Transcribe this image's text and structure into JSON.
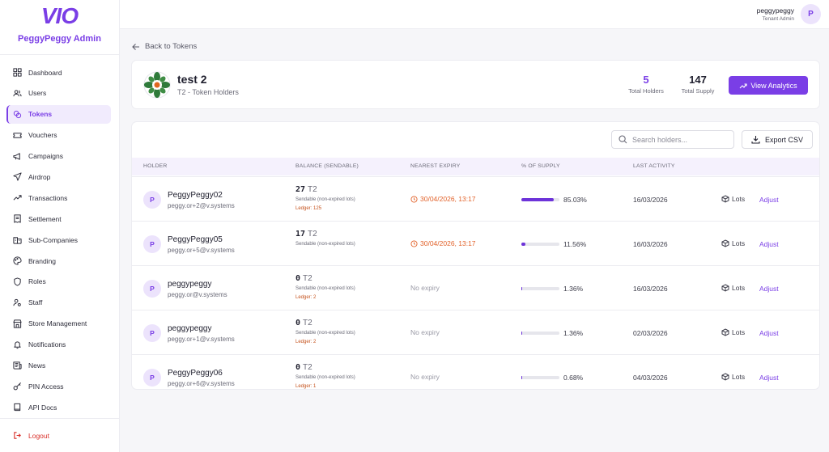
{
  "sidebar": {
    "logo_text": "VIO",
    "brand_title": "PeggyPeggy Admin",
    "items": [
      {
        "label": "Dashboard",
        "icon": "dashboard-icon",
        "active": false
      },
      {
        "label": "Users",
        "icon": "users-icon",
        "active": false
      },
      {
        "label": "Tokens",
        "icon": "coins-icon",
        "active": true
      },
      {
        "label": "Vouchers",
        "icon": "ticket-icon",
        "active": false
      },
      {
        "label": "Campaigns",
        "icon": "megaphone-icon",
        "active": false
      },
      {
        "label": "Airdrop",
        "icon": "send-icon",
        "active": false
      },
      {
        "label": "Transactions",
        "icon": "trending-up-icon",
        "active": false
      },
      {
        "label": "Settlement",
        "icon": "receipt-icon",
        "active": false
      },
      {
        "label": "Sub-Companies",
        "icon": "building-icon",
        "active": false
      },
      {
        "label": "Branding",
        "icon": "palette-icon",
        "active": false
      },
      {
        "label": "Roles",
        "icon": "shield-icon",
        "active": false
      },
      {
        "label": "Staff",
        "icon": "user-cog-icon",
        "active": false
      },
      {
        "label": "Store Management",
        "icon": "store-icon",
        "active": false
      },
      {
        "label": "Notifications",
        "icon": "bell-icon",
        "active": false
      },
      {
        "label": "News",
        "icon": "newspaper-icon",
        "active": false
      },
      {
        "label": "PIN Access",
        "icon": "key-icon",
        "active": false
      },
      {
        "label": "API Docs",
        "icon": "book-icon",
        "active": false
      }
    ],
    "logout_label": "Logout"
  },
  "header": {
    "user_name": "peggypeggy",
    "user_role": "Tenant Admin",
    "avatar_initial": "P"
  },
  "back_label": "Back to Tokens",
  "token": {
    "name": "test 2",
    "subtitle": "T2 - Token Holders",
    "total_holders": "5",
    "total_holders_label": "Total Holders",
    "total_supply": "147",
    "total_supply_label": "Total Supply",
    "analytics_label": "View Analytics"
  },
  "table": {
    "search_placeholder": "Search holders...",
    "export_label": "Export CSV",
    "columns": [
      "HOLDER",
      "BALANCE (SENDABLE)",
      "NEAREST EXPIRY",
      "% OF SUPPLY",
      "LAST ACTIVITY"
    ],
    "rows": [
      {
        "initial": "P",
        "name": "PeggyPeggy02",
        "email": "peggy.or+2@v.systems",
        "balance": "27",
        "unit": "T2",
        "sendable": "Sendable (non-expired lots)",
        "ledger": "Ledger: 125",
        "expiry": "30/04/2026, 13:17",
        "expiry_warn": true,
        "pct": 85.03,
        "pct_label": "85.03%",
        "last_activity": "16/03/2026",
        "lots_label": "Lots",
        "adjust_label": "Adjust"
      },
      {
        "initial": "P",
        "name": "PeggyPeggy05",
        "email": "peggy.or+5@v.systems",
        "balance": "17",
        "unit": "T2",
        "sendable": "Sendable (non-expired lots)",
        "ledger": "",
        "expiry": "30/04/2026, 13:17",
        "expiry_warn": true,
        "pct": 11.56,
        "pct_label": "11.56%",
        "last_activity": "16/03/2026",
        "lots_label": "Lots",
        "adjust_label": "Adjust"
      },
      {
        "initial": "P",
        "name": "peggypeggy",
        "email": "peggy.or@v.systems",
        "balance": "0",
        "unit": "T2",
        "sendable": "Sendable (non-expired lots)",
        "ledger": "Ledger: 2",
        "expiry": "No expiry",
        "expiry_warn": false,
        "pct": 1.36,
        "pct_label": "1.36%",
        "last_activity": "16/03/2026",
        "lots_label": "Lots",
        "adjust_label": "Adjust"
      },
      {
        "initial": "P",
        "name": "peggypeggy",
        "email": "peggy.or+1@v.systems",
        "balance": "0",
        "unit": "T2",
        "sendable": "Sendable (non-expired lots)",
        "ledger": "Ledger: 2",
        "expiry": "No expiry",
        "expiry_warn": false,
        "pct": 1.36,
        "pct_label": "1.36%",
        "last_activity": "02/03/2026",
        "lots_label": "Lots",
        "adjust_label": "Adjust"
      },
      {
        "initial": "P",
        "name": "PeggyPeggy06",
        "email": "peggy.or+6@v.systems",
        "balance": "0",
        "unit": "T2",
        "sendable": "Sendable (non-expired lots)",
        "ledger": "Ledger: 1",
        "expiry": "No expiry",
        "expiry_warn": false,
        "pct": 0.68,
        "pct_label": "0.68%",
        "last_activity": "04/03/2026",
        "lots_label": "Lots",
        "adjust_label": "Adjust"
      }
    ]
  },
  "colors": {
    "accent": "#7a3ee6",
    "warning": "#e2622a",
    "danger": "#d9302a"
  }
}
